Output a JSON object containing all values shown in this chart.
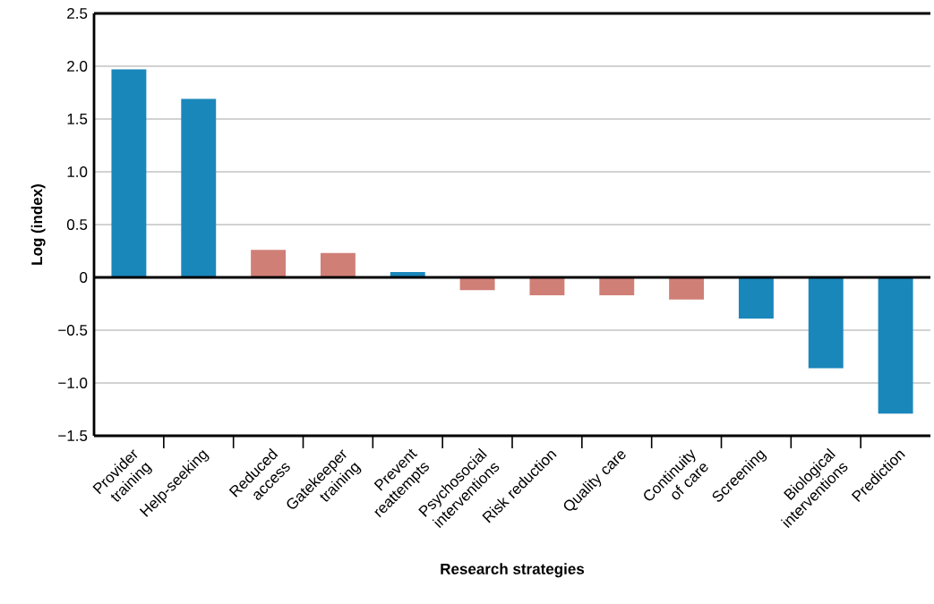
{
  "chart_data": {
    "type": "bar",
    "xlabel": "Research strategies",
    "ylabel": "Log (index)",
    "categories": [
      "Provider training",
      "Help-seeking",
      "Reduced access",
      "Gatekeeper training",
      "Prevent reattempts",
      "Psychosocial interventions",
      "Risk reduction",
      "Quality care",
      "Continuity of care",
      "Screening",
      "Biological interventions",
      "Prediction"
    ],
    "values": [
      1.97,
      1.69,
      0.26,
      0.23,
      0.05,
      -0.12,
      -0.17,
      -0.17,
      -0.21,
      -0.39,
      -0.86,
      -1.29
    ],
    "colors": [
      "#1a87bb",
      "#1a87bb",
      "#d07f77",
      "#d07f77",
      "#1a87bb",
      "#d07f77",
      "#d07f77",
      "#d07f77",
      "#d07f77",
      "#1a87bb",
      "#1a87bb",
      "#1a87bb"
    ],
    "ylim": [
      -1.5,
      2.5
    ],
    "yticks": [
      {
        "value": -1.5,
        "label": "−1.5"
      },
      {
        "value": -1.0,
        "label": "−1.0"
      },
      {
        "value": -0.5,
        "label": "−0.5"
      },
      0,
      0.5,
      {
        "value": 1.0,
        "label": "1.0"
      },
      1.5,
      {
        "value": 2.0,
        "label": "2.0"
      },
      2.5
    ],
    "grid": "y"
  }
}
